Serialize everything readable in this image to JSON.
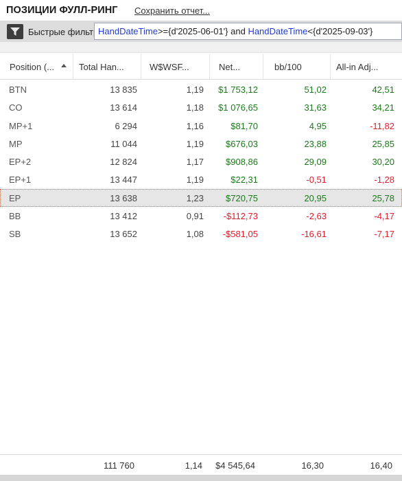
{
  "header": {
    "title": "ПОЗИЦИИ ФУЛЛ-РИНГ",
    "save_label": "Сохранить отчет..."
  },
  "filter": {
    "label": "Быстрые фильтры",
    "field1": "HandDateTime",
    "op1": ">={d'2025-06-01'} and ",
    "field2": "HandDateTime",
    "op2": "<{d'2025-09-03'}"
  },
  "icons": {
    "filter_button": "filter-funnel-icon",
    "sort": "sort-ascending-icon"
  },
  "colors": {
    "positive": "#1a7a1a",
    "negative": "#e01c2c",
    "keyword": "#1f3ad6",
    "selection_border": "#e06030"
  },
  "columns": [
    "Position (...",
    "Total Han...",
    "W$WSF...",
    "Net...",
    "bb/100",
    "All-in Adj..."
  ],
  "rows": [
    {
      "pos": "BTN",
      "total": "13 835",
      "wsf": "1,19",
      "net": "$1 753,12",
      "bb": "51,02",
      "adj": "42,51"
    },
    {
      "pos": "CO",
      "total": "13 614",
      "wsf": "1,18",
      "net": "$1 076,65",
      "bb": "31,63",
      "adj": "34,21"
    },
    {
      "pos": "MP+1",
      "total": "6 294",
      "wsf": "1,16",
      "net": "$81,70",
      "bb": "4,95",
      "adj": "-11,82"
    },
    {
      "pos": "MP",
      "total": "11 044",
      "wsf": "1,19",
      "net": "$676,03",
      "bb": "23,88",
      "adj": "25,85"
    },
    {
      "pos": "EP+2",
      "total": "12 824",
      "wsf": "1,17",
      "net": "$908,86",
      "bb": "29,09",
      "adj": "30,20"
    },
    {
      "pos": "EP+1",
      "total": "13 447",
      "wsf": "1,19",
      "net": "$22,31",
      "bb": "-0,51",
      "adj": "-1,28"
    },
    {
      "pos": "EP",
      "total": "13 638",
      "wsf": "1,23",
      "net": "$720,75",
      "bb": "20,95",
      "adj": "25,78"
    },
    {
      "pos": "BB",
      "total": "13 412",
      "wsf": "0,91",
      "net": "-$112,73",
      "bb": "-2,63",
      "adj": "-4,17"
    },
    {
      "pos": "SB",
      "total": "13 652",
      "wsf": "1,08",
      "net": "-$581,05",
      "bb": "-16,61",
      "adj": "-7,17"
    }
  ],
  "selected_row": "EP",
  "totals": {
    "total": "111 760",
    "wsf": "1,14",
    "net": "$4 545,64",
    "bb": "16,30",
    "adj": "16,40"
  }
}
